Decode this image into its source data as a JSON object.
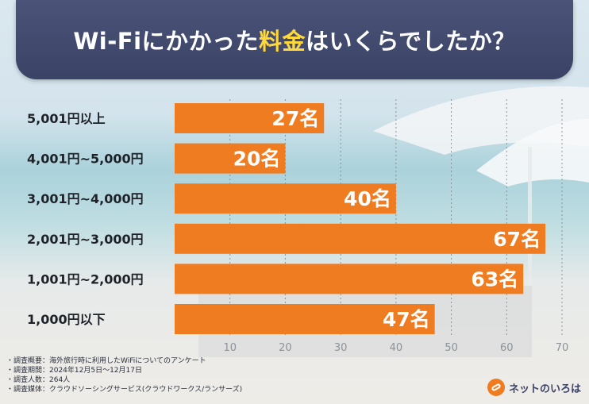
{
  "header": {
    "title_pre": "Wi-Fiにかかった",
    "title_highlight": "料金",
    "title_post": "はいくらでしたか？"
  },
  "colors": {
    "bar": "#f07c22",
    "banner": "#3f4870",
    "highlight": "#ffd83d"
  },
  "chart_data": {
    "type": "bar",
    "orientation": "horizontal",
    "categories": [
      "5,001円以上",
      "4,001円~5,000円",
      "3,001円~4,000円",
      "2,001円~3,000円",
      "1,001円~2,000円",
      "1,000円以下"
    ],
    "values": [
      27,
      20,
      40,
      67,
      63,
      47
    ],
    "value_labels": [
      "27名",
      "20名",
      "40名",
      "67名",
      "63名",
      "47名"
    ],
    "xlim": [
      0,
      70
    ],
    "xticks": [
      10,
      20,
      30,
      40,
      50,
      60,
      70
    ],
    "grid": true
  },
  "notes": [
    "・調査概要：海外旅行時に利用したWiFiについてのアンケート",
    "・調査期間：2024年12月5日～12月17日",
    "・調査人数：264人",
    "・調査媒体：クラウドソーシングサービス(クラウドワークス/ランサーズ)"
  ],
  "logo": {
    "text": "ネットのいろは"
  }
}
